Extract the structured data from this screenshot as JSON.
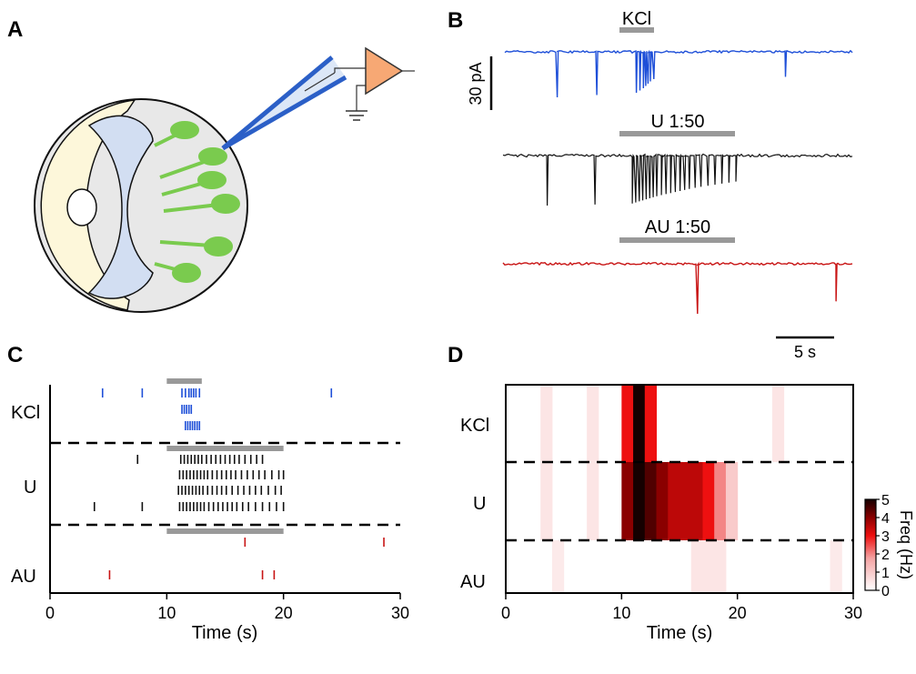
{
  "panels": {
    "a": "A",
    "b": "B",
    "c": "C",
    "d": "D"
  },
  "panel_b": {
    "traces": [
      {
        "label": "KCl",
        "color": "#1e4fd8"
      },
      {
        "label": "U 1:50",
        "color": "#111111"
      },
      {
        "label": "AU 1:50",
        "color": "#c81414"
      }
    ],
    "scale_current": "30 pA",
    "scale_time": "5 s"
  },
  "panel_c": {
    "groups": [
      {
        "label": "KCl",
        "color": "#1e4fd8"
      },
      {
        "label": "U",
        "color": "#111111"
      },
      {
        "label": "AU",
        "color": "#c81414"
      }
    ],
    "xlabel": "Time (s)",
    "xticks": [
      "0",
      "10",
      "20",
      "30"
    ]
  },
  "panel_d": {
    "rows": [
      "KCl",
      "U",
      "AU"
    ],
    "xlabel": "Time (s)",
    "xticks": [
      "0",
      "10",
      "20",
      "30"
    ],
    "colorbar_label": "Freq (Hz)",
    "colorbar_ticks": [
      "0",
      "1",
      "2",
      "3",
      "4",
      "5"
    ]
  },
  "chart_data": [
    {
      "type": "scatter",
      "subtype": "raster",
      "xlabel": "Time (s)",
      "xlim": [
        0,
        30
      ],
      "stimulus_bars": [
        {
          "group": "KCl",
          "start": 10,
          "end": 13
        },
        {
          "group": "U",
          "start": 10,
          "end": 20
        },
        {
          "group": "AU",
          "start": 10,
          "end": 20
        }
      ],
      "series": [
        {
          "name": "KCl",
          "trials": [
            [
              4.5,
              7.9,
              11.3,
              11.6,
              11.9,
              12.1,
              12.3,
              12.5,
              12.8,
              24.1
            ],
            [
              11.3,
              11.5,
              11.7,
              11.9,
              12.1
            ],
            [
              11.6,
              11.8,
              12.0,
              12.2,
              12.4,
              12.6,
              12.8
            ]
          ]
        },
        {
          "name": "U",
          "trials": [
            [
              7.5,
              11.2,
              11.5,
              11.8,
              12.1,
              12.4,
              12.7,
              13.0,
              13.4,
              13.8,
              14.2,
              14.6,
              15.0,
              15.4,
              15.8,
              16.2,
              16.7,
              17.2,
              17.7,
              18.2
            ],
            [
              11.1,
              11.4,
              11.7,
              12.0,
              12.3,
              12.6,
              12.9,
              13.2,
              13.5,
              13.9,
              14.3,
              14.7,
              15.1,
              15.5,
              15.9,
              16.4,
              16.9,
              17.4,
              17.9,
              18.4,
              19.0,
              19.6,
              20.0
            ],
            [
              11.0,
              11.3,
              11.6,
              11.9,
              12.2,
              12.5,
              12.8,
              13.1,
              13.5,
              13.9,
              14.3,
              14.7,
              15.1,
              15.6,
              16.1,
              16.6,
              17.1,
              17.6,
              18.1,
              18.7,
              19.3,
              19.8
            ],
            [
              3.8,
              7.9,
              11.1,
              11.4,
              11.7,
              12.0,
              12.3,
              12.6,
              12.9,
              13.2,
              13.6,
              14.0,
              14.4,
              14.8,
              15.2,
              15.6,
              16.0,
              16.5,
              17.0,
              17.6,
              18.2,
              18.8,
              19.4,
              20.0
            ]
          ]
        },
        {
          "name": "AU",
          "trials": [
            [
              16.7,
              28.6
            ],
            [
              5.1,
              18.2,
              19.2
            ]
          ]
        }
      ]
    },
    {
      "type": "heatmap",
      "xlabel": "Time (s)",
      "xlim": [
        0,
        30
      ],
      "rows": [
        "KCl",
        "U",
        "AU"
      ],
      "colorbar": {
        "label": "Freq (Hz)",
        "range": [
          0,
          5
        ]
      },
      "bin_width_s": 1,
      "values": [
        [
          0,
          0,
          0,
          0.5,
          0,
          0,
          0,
          0.5,
          0,
          0,
          3,
          5,
          3,
          0,
          0,
          0,
          0,
          0,
          0,
          0,
          0,
          0,
          0,
          0.5,
          0,
          0,
          0,
          0,
          0,
          0
        ],
        [
          0,
          0,
          0,
          0.5,
          0,
          0,
          0,
          0.5,
          0,
          0,
          4,
          5,
          4.5,
          4,
          3.5,
          3.5,
          3.5,
          3,
          2,
          1,
          0,
          0,
          0,
          0,
          0,
          0,
          0,
          0,
          0,
          0
        ],
        [
          0,
          0,
          0,
          0,
          0.4,
          0,
          0,
          0,
          0,
          0,
          0,
          0,
          0,
          0,
          0,
          0,
          0.5,
          0.5,
          0.5,
          0,
          0,
          0,
          0,
          0,
          0,
          0,
          0,
          0,
          0.4,
          0
        ]
      ]
    }
  ]
}
